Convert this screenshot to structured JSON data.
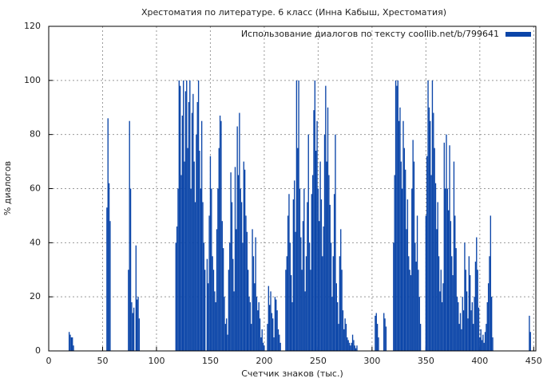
{
  "chart_data": {
    "type": "bar",
    "title": "Хрестоматия по литературе. 6 класс (Инна Кабыш,  Хрестоматия)",
    "xlabel": "Счетчик знаков (тыс.)",
    "ylabel": "% диалогов",
    "legend": "top-right",
    "grid": true,
    "xlim": [
      0,
      452
    ],
    "ylim": [
      0,
      120
    ],
    "xticks": [
      0,
      50,
      100,
      150,
      200,
      250,
      300,
      350,
      400,
      450
    ],
    "yticks": [
      0,
      20,
      40,
      60,
      80,
      100,
      120
    ],
    "series": [
      {
        "name": "Использование диалогов по тексту coollib.net/b/799641",
        "color": "#0b45a8",
        "x": [
          19,
          20,
          21,
          22,
          23,
          54,
          55,
          56,
          57,
          74,
          75,
          76,
          77,
          78,
          79,
          81,
          82,
          83,
          84,
          118,
          119,
          120,
          121,
          122,
          123,
          124,
          125,
          126,
          127,
          128,
          129,
          130,
          131,
          132,
          133,
          134,
          135,
          136,
          137,
          138,
          139,
          140,
          141,
          142,
          143,
          144,
          145,
          147,
          148,
          149,
          150,
          151,
          152,
          153,
          154,
          155,
          156,
          157,
          158,
          159,
          160,
          161,
          162,
          163,
          164,
          165,
          166,
          167,
          168,
          169,
          170,
          171,
          172,
          173,
          174,
          175,
          176,
          177,
          178,
          179,
          180,
          181,
          182,
          183,
          184,
          185,
          186,
          187,
          188,
          189,
          190,
          191,
          192,
          193,
          194,
          195,
          196,
          197,
          198,
          199,
          200,
          203,
          204,
          205,
          206,
          207,
          208,
          209,
          210,
          211,
          212,
          213,
          214,
          215,
          220,
          221,
          222,
          223,
          224,
          225,
          226,
          227,
          228,
          229,
          230,
          231,
          232,
          233,
          234,
          235,
          236,
          237,
          238,
          239,
          240,
          241,
          242,
          243,
          244,
          245,
          246,
          247,
          248,
          249,
          250,
          251,
          252,
          253,
          254,
          255,
          256,
          257,
          258,
          259,
          260,
          261,
          262,
          263,
          264,
          265,
          266,
          267,
          268,
          269,
          270,
          271,
          272,
          273,
          274,
          275,
          276,
          277,
          278,
          279,
          280,
          281,
          282,
          283,
          284,
          285,
          286,
          303,
          304,
          305,
          306,
          311,
          312,
          313,
          320,
          321,
          322,
          323,
          324,
          325,
          326,
          327,
          328,
          329,
          330,
          331,
          332,
          333,
          334,
          335,
          336,
          337,
          338,
          339,
          340,
          341,
          342,
          343,
          344,
          345,
          350,
          351,
          352,
          353,
          354,
          355,
          356,
          357,
          358,
          359,
          360,
          361,
          362,
          363,
          364,
          365,
          366,
          367,
          368,
          369,
          370,
          371,
          372,
          373,
          374,
          375,
          376,
          377,
          378,
          379,
          380,
          381,
          382,
          383,
          384,
          385,
          386,
          387,
          388,
          389,
          390,
          391,
          392,
          393,
          394,
          395,
          396,
          397,
          398,
          399,
          400,
          401,
          402,
          403,
          404,
          405,
          406,
          407,
          408,
          409,
          410,
          411,
          412,
          446,
          447
        ],
        "values": [
          7,
          6,
          5,
          5,
          2,
          53,
          86,
          62,
          48,
          30,
          85,
          60,
          18,
          14,
          16,
          39,
          19,
          20,
          12,
          40,
          46,
          60,
          100,
          98,
          65,
          87,
          100,
          70,
          96,
          100,
          75,
          92,
          100,
          60,
          88,
          95,
          70,
          55,
          80,
          92,
          100,
          74,
          60,
          85,
          55,
          40,
          30,
          34,
          25,
          50,
          72,
          60,
          35,
          30,
          22,
          18,
          45,
          60,
          75,
          87,
          85,
          48,
          38,
          20,
          10,
          12,
          6,
          30,
          40,
          66,
          55,
          34,
          22,
          68,
          45,
          83,
          65,
          88,
          60,
          55,
          40,
          70,
          67,
          50,
          44,
          30,
          20,
          18,
          10,
          45,
          35,
          25,
          42,
          20,
          15,
          18,
          12,
          5,
          8,
          3,
          2,
          10,
          24,
          17,
          22,
          14,
          12,
          5,
          20,
          19,
          15,
          8,
          6,
          3,
          30,
          35,
          50,
          58,
          40,
          28,
          18,
          56,
          63,
          44,
          100,
          75,
          100,
          60,
          42,
          30,
          48,
          60,
          22,
          35,
          55,
          80,
          40,
          30,
          58,
          65,
          89,
          100,
          74,
          85,
          60,
          48,
          70,
          56,
          35,
          46,
          80,
          98,
          70,
          90,
          65,
          54,
          40,
          20,
          35,
          58,
          80,
          25,
          18,
          10,
          35,
          45,
          30,
          15,
          8,
          12,
          10,
          5,
          4,
          3,
          2,
          3,
          6,
          4,
          2,
          1,
          2,
          13,
          14,
          10,
          5,
          14,
          12,
          9,
          40,
          65,
          100,
          98,
          100,
          85,
          90,
          70,
          60,
          85,
          75,
          67,
          45,
          56,
          35,
          30,
          28,
          60,
          78,
          70,
          40,
          33,
          50,
          30,
          20,
          10,
          50,
          72,
          100,
          90,
          85,
          65,
          100,
          88,
          75,
          62,
          45,
          55,
          35,
          22,
          30,
          18,
          25,
          77,
          60,
          80,
          60,
          52,
          76,
          48,
          35,
          28,
          70,
          50,
          38,
          20,
          18,
          10,
          14,
          8,
          20,
          15,
          40,
          30,
          22,
          12,
          35,
          28,
          15,
          18,
          10,
          20,
          33,
          42,
          30,
          16,
          5,
          8,
          4,
          6,
          3,
          7,
          10,
          18,
          25,
          35,
          50,
          20,
          5,
          13,
          7
        ]
      }
    ]
  }
}
